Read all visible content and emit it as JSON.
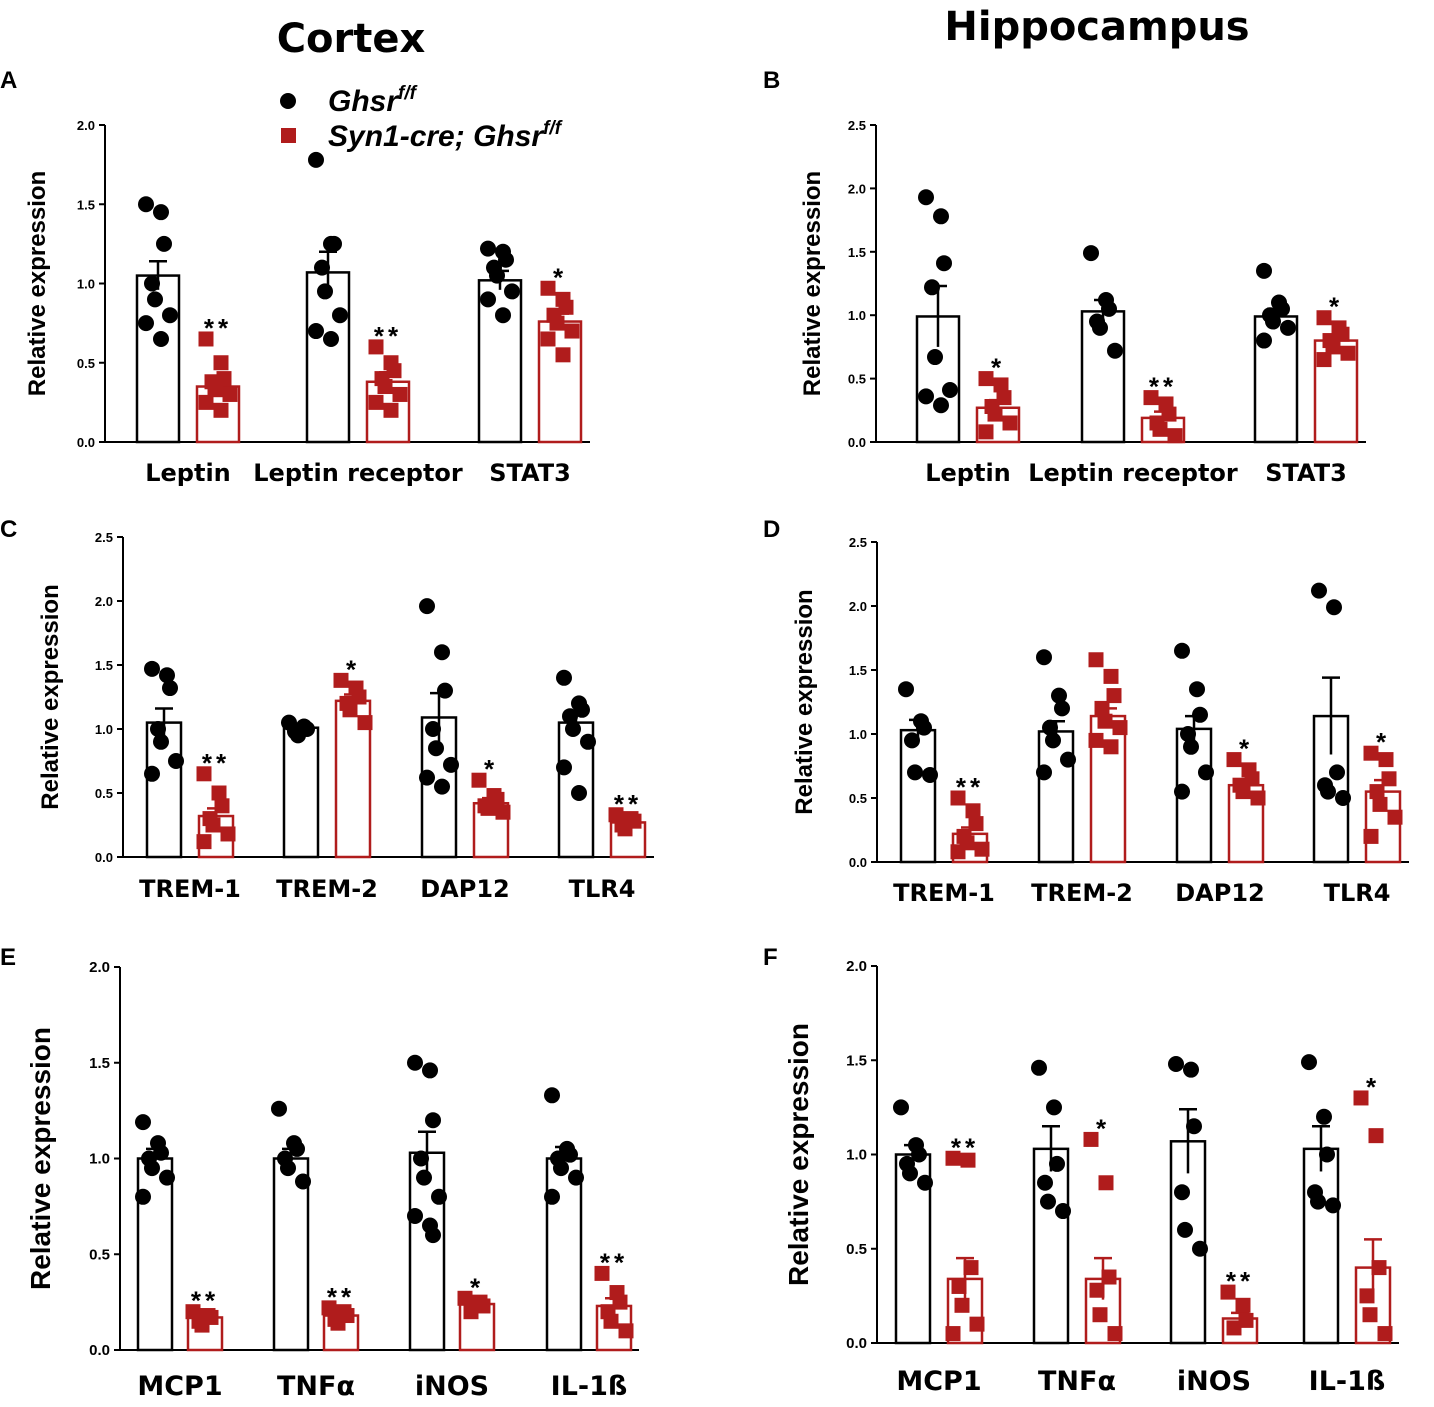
{
  "figure": {
    "col_titles": [
      "Cortex",
      "Hippocampus"
    ],
    "legend": [
      {
        "label": "Ghsr",
        "sup": "f/f",
        "marker": "circle",
        "color": "#000000"
      },
      {
        "label": "Syn1-cre; Ghsr",
        "sup": "f/f",
        "marker": "square",
        "color": "#b01c1c"
      }
    ]
  },
  "colors": {
    "wt": "#000000",
    "ko": "#b01c1c",
    "bar_fill": "#ffffff"
  },
  "chart_data": [
    {
      "id": "A",
      "type": "bar",
      "region": "Cortex",
      "ylabel": "Relative expression",
      "ylim": [
        0,
        2.0
      ],
      "yticks": [
        "0.0",
        "0.5",
        "1.0",
        "1.5",
        "2.0"
      ],
      "categories": [
        "Leptin",
        "Leptin receptor",
        "STAT3"
      ],
      "series": [
        {
          "name": "Ghsr f/f",
          "values": [
            1.05,
            1.07,
            1.02
          ],
          "sem": [
            0.09,
            0.13,
            0.06
          ],
          "points": [
            [
              1.5,
              1.45,
              1.25,
              1.0,
              0.9,
              0.8,
              0.75,
              0.65
            ],
            [
              1.78,
              1.25,
              1.25,
              1.1,
              0.95,
              0.8,
              0.7,
              0.65
            ],
            [
              1.22,
              1.2,
              1.15,
              1.1,
              1.05,
              0.95,
              0.9,
              0.8
            ]
          ]
        },
        {
          "name": "Syn1-cre; Ghsr f/f",
          "values": [
            0.35,
            0.38,
            0.76
          ],
          "sem": [
            0.05,
            0.06,
            0.05
          ],
          "points": [
            [
              0.65,
              0.5,
              0.4,
              0.38,
              0.33,
              0.3,
              0.25,
              0.2
            ],
            [
              0.6,
              0.5,
              0.45,
              0.4,
              0.35,
              0.3,
              0.25,
              0.2
            ],
            [
              0.97,
              0.9,
              0.85,
              0.8,
              0.75,
              0.7,
              0.65,
              0.55
            ]
          ]
        }
      ],
      "significance": [
        "**",
        "**",
        "*"
      ]
    },
    {
      "id": "B",
      "type": "bar",
      "region": "Hippocampus",
      "ylabel": "Relative expression",
      "ylim": [
        0,
        2.5
      ],
      "yticks": [
        "0.0",
        "0.5",
        "1.0",
        "1.5",
        "2.0",
        "2.5"
      ],
      "categories": [
        "Leptin",
        "Leptin receptor",
        "STAT3"
      ],
      "series": [
        {
          "name": "Ghsr f/f",
          "values": [
            0.99,
            1.03,
            0.99
          ],
          "sem": [
            0.24,
            0.09,
            0.06
          ],
          "points": [
            [
              1.93,
              1.78,
              1.41,
              1.22,
              0.67,
              0.41,
              0.36,
              0.29
            ],
            [
              1.49,
              1.12,
              1.05,
              0.95,
              0.9,
              0.72
            ],
            [
              1.35,
              1.1,
              1.05,
              1.0,
              0.95,
              0.9,
              0.8
            ]
          ]
        },
        {
          "name": "Syn1-cre; Ghsr f/f",
          "values": [
            0.27,
            0.19,
            0.8
          ],
          "sem": [
            0.06,
            0.05,
            0.04
          ],
          "points": [
            [
              0.5,
              0.45,
              0.35,
              0.28,
              0.22,
              0.15,
              0.08
            ],
            [
              0.35,
              0.3,
              0.22,
              0.15,
              0.1,
              0.05
            ],
            [
              0.98,
              0.9,
              0.85,
              0.8,
              0.75,
              0.7,
              0.65
            ]
          ]
        }
      ],
      "significance": [
        "*",
        "**",
        "*"
      ]
    },
    {
      "id": "C",
      "type": "bar",
      "region": "Cortex",
      "ylabel": "Relative expression",
      "ylim": [
        0,
        2.5
      ],
      "yticks": [
        "0.0",
        "0.5",
        "1.0",
        "1.5",
        "2.0",
        "2.5"
      ],
      "categories": [
        "TREM-1",
        "TREM-2",
        "DAP12",
        "TLR4"
      ],
      "series": [
        {
          "name": "Ghsr f/f",
          "values": [
            1.05,
            1.01,
            1.09,
            1.05
          ],
          "sem": [
            0.11,
            0.03,
            0.19,
            0.09
          ],
          "points": [
            [
              1.47,
              1.42,
              1.32,
              1.0,
              0.9,
              0.75,
              0.65
            ],
            [
              1.05,
              1.02,
              1.0,
              0.98,
              0.95
            ],
            [
              1.96,
              1.6,
              1.3,
              1.0,
              0.85,
              0.72,
              0.62,
              0.55
            ],
            [
              1.4,
              1.2,
              1.15,
              1.1,
              1.0,
              0.9,
              0.7,
              0.5
            ]
          ]
        },
        {
          "name": "Syn1-cre; Ghsr f/f",
          "values": [
            0.32,
            1.22,
            0.42,
            0.27
          ],
          "sem": [
            0.06,
            0.05,
            0.04,
            0.02
          ],
          "points": [
            [
              0.65,
              0.5,
              0.4,
              0.3,
              0.25,
              0.18,
              0.12
            ],
            [
              1.38,
              1.32,
              1.25,
              1.2,
              1.15,
              1.05
            ],
            [
              0.6,
              0.48,
              0.45,
              0.4,
              0.38,
              0.35
            ],
            [
              0.33,
              0.3,
              0.28,
              0.25,
              0.22
            ]
          ]
        }
      ],
      "significance": [
        "**",
        "*",
        "*",
        "**"
      ]
    },
    {
      "id": "D",
      "type": "bar",
      "region": "Hippocampus",
      "ylabel": "Relative expression",
      "ylim": [
        0,
        2.5
      ],
      "yticks": [
        "0.0",
        "0.5",
        "1.0",
        "1.5",
        "2.0",
        "2.5"
      ],
      "categories": [
        "TREM-1",
        "TREM-2",
        "DAP12",
        "TLR4"
      ],
      "series": [
        {
          "name": "Ghsr f/f",
          "values": [
            1.03,
            1.02,
            1.04,
            1.14
          ],
          "sem": [
            0.08,
            0.08,
            0.1,
            0.3
          ],
          "points": [
            [
              1.35,
              1.1,
              1.05,
              0.95,
              0.7,
              0.68
            ],
            [
              1.6,
              1.3,
              1.2,
              1.05,
              0.95,
              0.8,
              0.7
            ],
            [
              1.65,
              1.35,
              1.15,
              1.0,
              0.9,
              0.7,
              0.55
            ],
            [
              2.12,
              1.99,
              0.7,
              0.6,
              0.55,
              0.5
            ]
          ]
        },
        {
          "name": "Syn1-cre; Ghsr f/f",
          "values": [
            0.22,
            1.14,
            0.6,
            0.55
          ],
          "sem": [
            0.05,
            0.06,
            0.03,
            0.09
          ],
          "points": [
            [
              0.5,
              0.4,
              0.3,
              0.2,
              0.15,
              0.1,
              0.08
            ],
            [
              1.58,
              1.45,
              1.3,
              1.2,
              1.1,
              1.05,
              0.95,
              0.9
            ],
            [
              0.8,
              0.72,
              0.65,
              0.6,
              0.55,
              0.5
            ],
            [
              0.85,
              0.8,
              0.65,
              0.55,
              0.45,
              0.35,
              0.2
            ]
          ]
        }
      ],
      "significance": [
        "**",
        "",
        "*",
        "*"
      ]
    },
    {
      "id": "E",
      "type": "bar",
      "region": "Cortex",
      "ylabel": "Relative expression",
      "ylim": [
        0,
        2.0
      ],
      "yticks": [
        "0.0",
        "0.5",
        "1.0",
        "1.5",
        "2.0"
      ],
      "categories": [
        "MCP1",
        "TNFα",
        "iNOS",
        "IL-1ß"
      ],
      "series": [
        {
          "name": "Ghsr f/f",
          "values": [
            1.0,
            1.0,
            1.03,
            1.0
          ],
          "sem": [
            0.05,
            0.05,
            0.11,
            0.06
          ],
          "points": [
            [
              1.19,
              1.08,
              1.03,
              1.0,
              0.95,
              0.9,
              0.8
            ],
            [
              1.26,
              1.08,
              1.05,
              1.0,
              0.95,
              0.88
            ],
            [
              1.5,
              1.46,
              1.2,
              1.0,
              0.9,
              0.8,
              0.7,
              0.65,
              0.6
            ],
            [
              1.33,
              1.05,
              1.02,
              1.0,
              0.95,
              0.9,
              0.8
            ]
          ]
        },
        {
          "name": "Syn1-cre; Ghsr f/f",
          "values": [
            0.17,
            0.18,
            0.24,
            0.23
          ],
          "sem": [
            0.01,
            0.02,
            0.02,
            0.04
          ],
          "points": [
            [
              0.2,
              0.18,
              0.17,
              0.15,
              0.13
            ],
            [
              0.22,
              0.2,
              0.18,
              0.16,
              0.14
            ],
            [
              0.27,
              0.25,
              0.23,
              0.2
            ],
            [
              0.4,
              0.3,
              0.25,
              0.2,
              0.15,
              0.1
            ]
          ]
        }
      ],
      "significance": [
        "**",
        "**",
        "*",
        "**"
      ]
    },
    {
      "id": "F",
      "type": "bar",
      "region": "Hippocampus",
      "ylabel": "Relative expression",
      "ylim": [
        0,
        2.0
      ],
      "yticks": [
        "0.0",
        "0.5",
        "1.0",
        "1.5",
        "2.0"
      ],
      "categories": [
        "MCP1",
        "TNFα",
        "iNOS",
        "IL-1ß"
      ],
      "series": [
        {
          "name": "Ghsr f/f",
          "values": [
            1.0,
            1.03,
            1.07,
            1.03
          ],
          "sem": [
            0.05,
            0.12,
            0.17,
            0.12
          ],
          "points": [
            [
              1.25,
              1.05,
              1.0,
              0.95,
              0.9,
              0.85
            ],
            [
              1.46,
              1.25,
              0.95,
              0.85,
              0.75,
              0.7
            ],
            [
              1.48,
              1.45,
              1.15,
              0.8,
              0.6,
              0.5
            ],
            [
              1.49,
              1.2,
              1.0,
              0.8,
              0.75,
              0.73
            ]
          ]
        },
        {
          "name": "Syn1-cre; Ghsr f/f",
          "values": [
            0.34,
            0.34,
            0.13,
            0.4
          ],
          "sem": [
            0.11,
            0.11,
            0.03,
            0.15
          ],
          "points": [
            [
              0.98,
              0.97,
              0.4,
              0.3,
              0.2,
              0.1,
              0.05
            ],
            [
              1.08,
              0.85,
              0.35,
              0.28,
              0.15,
              0.05
            ],
            [
              0.27,
              0.2,
              0.12,
              0.08
            ],
            [
              1.3,
              1.1,
              0.4,
              0.25,
              0.15,
              0.05
            ]
          ]
        }
      ],
      "significance": [
        "**",
        "*",
        "**",
        "*"
      ]
    }
  ]
}
